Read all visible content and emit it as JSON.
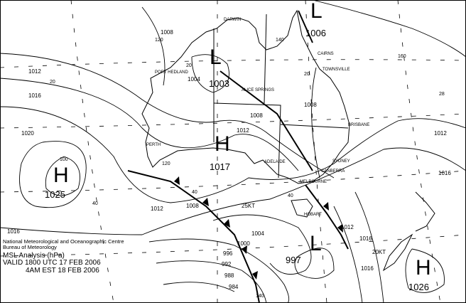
{
  "title_block": {
    "org_line1": "National Meteorological and Oceanographic Centre",
    "org_line2": "Bureau of Meteorology",
    "product": "MSL Analysis (hPa)",
    "valid_utc": "VALID 1800 UTC 17 FEB 2006",
    "valid_local": "4AM EST 18 FEB 2006"
  },
  "pressure_centres": [
    {
      "type": "L",
      "value": "1006"
    },
    {
      "type": "L",
      "value": "1003"
    },
    {
      "type": "H",
      "value": "1017"
    },
    {
      "type": "H",
      "value": "1025"
    },
    {
      "type": "L",
      "value": "997"
    },
    {
      "type": "H",
      "value": "1026"
    }
  ],
  "cities": [
    "DARWIN",
    "PORT HEDLAND",
    "ALICE SPRINGS",
    "CAIRNS",
    "TOWNSVILLE",
    "BRISBANE",
    "PERTH",
    "ADELAIDE",
    "SYDNEY",
    "CANBERRA",
    "MELBOURNE",
    "HOBART"
  ],
  "isobar_labels": [
    "1008",
    "1004",
    "1012",
    "1016",
    "1020",
    "1008",
    "1012",
    "1008",
    "1016",
    "1012",
    "1016",
    "1016",
    "1012",
    "1008",
    "1004",
    "1000",
    "996",
    "992",
    "988",
    "984",
    "1012",
    "1016"
  ],
  "grid_labels": [
    "120",
    "140",
    "160",
    "20",
    "20",
    "20",
    "28",
    "40",
    "40",
    "40",
    "120",
    "140",
    "100"
  ],
  "wind_labels": [
    "25KT",
    "20KT"
  ]
}
